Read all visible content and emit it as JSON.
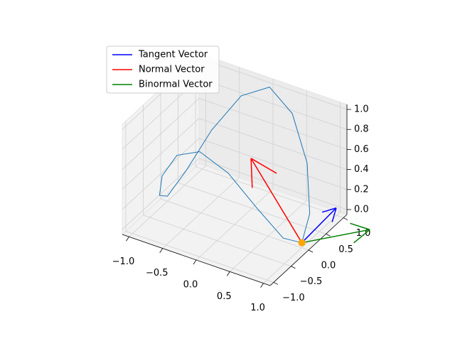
{
  "chart_data": {
    "type": "line3d",
    "xlim": [
      -1.1,
      1.1
    ],
    "ylim": [
      -1.1,
      1.1
    ],
    "zlim": [
      -0.05,
      1.05
    ],
    "xticks": [
      {
        "value": -1,
        "label": "−1.0"
      },
      {
        "value": -0.5,
        "label": "−0.5"
      },
      {
        "value": 0,
        "label": "0.0"
      },
      {
        "value": 0.5,
        "label": "0.5"
      },
      {
        "value": 1,
        "label": "1.0"
      }
    ],
    "yticks": [
      {
        "value": -1,
        "label": "−1.0"
      },
      {
        "value": -0.5,
        "label": "−0.5"
      },
      {
        "value": 0,
        "label": "0.0"
      },
      {
        "value": 0.5,
        "label": "0.5"
      },
      {
        "value": 1,
        "label": "1.0"
      }
    ],
    "zticks": [
      {
        "value": 0,
        "label": "0.0"
      },
      {
        "value": 0.2,
        "label": "0.2"
      },
      {
        "value": 0.4,
        "label": "0.4"
      },
      {
        "value": 0.6,
        "label": "0.6"
      },
      {
        "value": 0.8,
        "label": "0.8"
      },
      {
        "value": 1,
        "label": "1.0"
      }
    ],
    "curve": {
      "color": "#1f77b4",
      "x": [
        1,
        0.92,
        0.71,
        0.38,
        0,
        -0.38,
        -0.71,
        -0.92,
        -1,
        -0.92,
        -0.71,
        -0.38,
        0,
        0.38,
        0.71,
        0.92,
        1
      ],
      "y": [
        0,
        0.38,
        0.71,
        0.92,
        1,
        0.92,
        0.71,
        0.38,
        0,
        -0.38,
        -0.71,
        -0.92,
        -1,
        -0.92,
        -0.71,
        -0.38,
        0
      ],
      "z": [
        0,
        0.15,
        0.5,
        0.85,
        1,
        0.85,
        0.5,
        0.15,
        0,
        0.15,
        0.5,
        0.85,
        1,
        0.85,
        0.5,
        0.15,
        0
      ]
    },
    "point": {
      "color": "orange",
      "x": 1,
      "y": 0,
      "z": 0
    },
    "series": [
      {
        "name": "Tangent Vector",
        "color": "blue",
        "u": 0.2,
        "v": 0.6,
        "w": 0.2
      },
      {
        "name": "Normal Vector",
        "color": "red",
        "u": -0.6,
        "v": -0.3,
        "w": 0.8
      },
      {
        "name": "Binormal Vector",
        "color": "green",
        "u": 0.7,
        "v": 0.6,
        "w": 0.1
      }
    ],
    "legend": "upper left",
    "grid": true
  }
}
